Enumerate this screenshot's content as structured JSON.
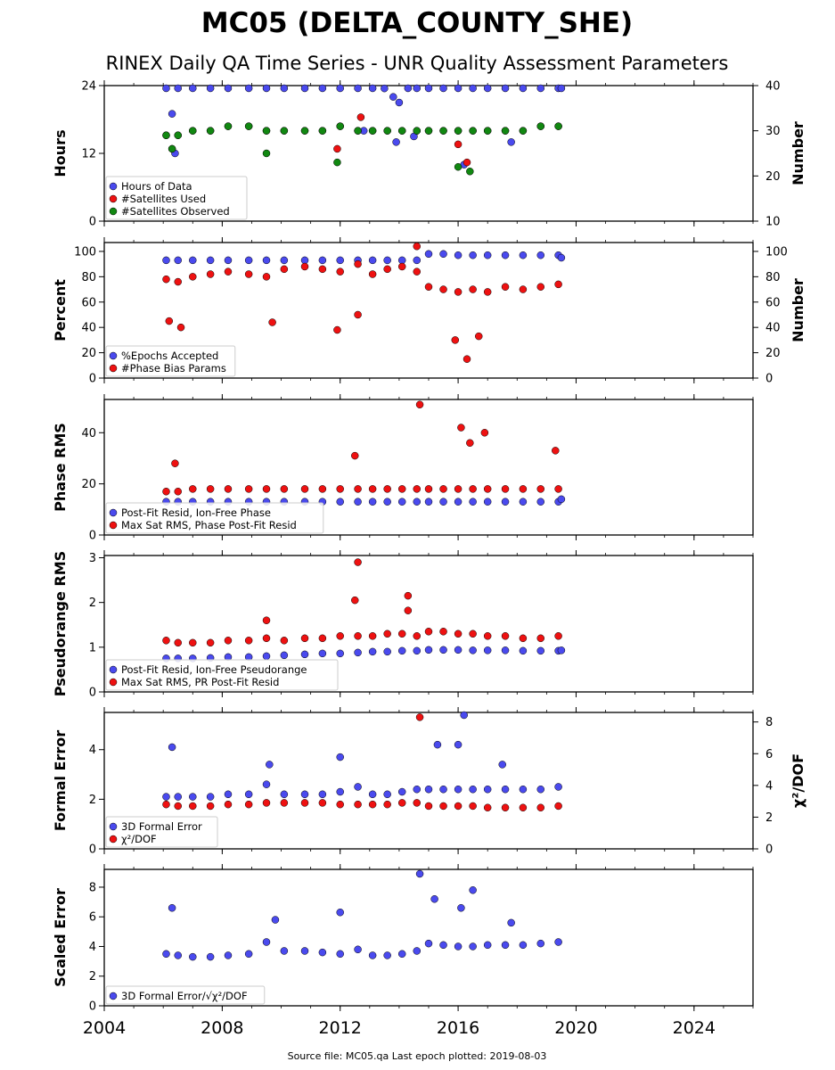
{
  "title": "MC05 (DELTA_COUNTY_SHE)",
  "subtitle": "RINEX Daily QA Time Series - UNR Quality Assessment Parameters",
  "footer": "Source file: MC05.qa Last epoch plotted: 2019-08-03",
  "x_axis": {
    "range": [
      2004,
      2026
    ],
    "ticks": [
      2004,
      2008,
      2012,
      2016,
      2020,
      2024
    ],
    "tick_labels": [
      "2004",
      "2008",
      "2012",
      "2016",
      "2020",
      "2024"
    ]
  },
  "colors": {
    "blue": "#4a4aee",
    "red": "#ee1111",
    "green": "#118811"
  },
  "chart_data": [
    {
      "type": "scatter",
      "ylabel": "Hours",
      "ylim": [
        0,
        24
      ],
      "yticks": [
        0,
        12,
        24
      ],
      "y2label": "Number",
      "y2lim": [
        10,
        40
      ],
      "y2ticks": [
        10,
        20,
        30,
        40
      ],
      "legend_position": "lower-left",
      "series": [
        {
          "name": "Hours of Data",
          "color": "blue",
          "axis": "left",
          "x": [
            2006.1,
            2006.5,
            2007.0,
            2007.6,
            2008.2,
            2008.9,
            2009.5,
            2010.1,
            2010.8,
            2011.4,
            2012.0,
            2012.6,
            2013.1,
            2013.5,
            2013.8,
            2014.0,
            2014.3,
            2014.6,
            2015.0,
            2015.5,
            2016.0,
            2016.5,
            2017.0,
            2017.6,
            2018.2,
            2018.8,
            2019.4,
            2019.5,
            2006.3,
            2012.8,
            2013.9,
            2014.5,
            2016.2,
            2017.8,
            2006.4
          ],
          "y": [
            24,
            24,
            24,
            24,
            24,
            24,
            24,
            24,
            24,
            24,
            24,
            24,
            24,
            23.5,
            22,
            21,
            24,
            24,
            24,
            24,
            24,
            24,
            24,
            24,
            24,
            24,
            24,
            24,
            19,
            16,
            14,
            15,
            10,
            14,
            12
          ]
        },
        {
          "name": "#Satellites Used",
          "color": "red",
          "axis": "right",
          "x": [
            2006.1,
            2006.5,
            2007.0,
            2007.6,
            2008.2,
            2008.9,
            2009.5,
            2010.1,
            2010.8,
            2011.4,
            2012.0,
            2012.6,
            2013.1,
            2013.6,
            2014.1,
            2014.6,
            2015.0,
            2015.5,
            2016.0,
            2016.5,
            2017.0,
            2017.6,
            2018.2,
            2018.8,
            2019.4,
            2006.3,
            2011.9,
            2016.0,
            2016.3,
            2012.7
          ],
          "y": [
            29,
            29,
            30,
            30,
            31,
            31,
            30,
            30,
            30,
            30,
            31,
            30,
            30,
            30,
            30,
            30,
            30,
            30,
            30,
            30,
            30,
            30,
            30,
            31,
            31,
            26,
            26,
            27,
            23,
            33
          ]
        },
        {
          "name": "#Satellites Observed",
          "color": "green",
          "axis": "right",
          "x": [
            2006.1,
            2006.5,
            2007.0,
            2007.6,
            2008.2,
            2008.9,
            2009.5,
            2010.1,
            2010.8,
            2011.4,
            2012.0,
            2012.6,
            2013.1,
            2013.6,
            2014.1,
            2014.6,
            2015.0,
            2015.5,
            2016.0,
            2016.5,
            2017.0,
            2017.6,
            2018.2,
            2018.8,
            2019.4,
            2006.3,
            2009.5,
            2011.9,
            2016.0,
            2016.4
          ],
          "y": [
            29,
            29,
            30,
            30,
            31,
            31,
            30,
            30,
            30,
            30,
            31,
            30,
            30,
            30,
            30,
            30,
            30,
            30,
            30,
            30,
            30,
            30,
            30,
            31,
            31,
            26,
            25,
            23,
            22,
            21
          ]
        }
      ]
    },
    {
      "type": "scatter",
      "ylabel": "Percent",
      "ylim": [
        0,
        107
      ],
      "yticks": [
        0,
        20,
        40,
        60,
        80,
        100
      ],
      "y2label": "Number",
      "y2lim": [
        0,
        107
      ],
      "y2ticks": [
        0,
        20,
        40,
        60,
        80,
        100
      ],
      "legend_position": "lower-left",
      "series": [
        {
          "name": "%Epochs Accepted",
          "color": "blue",
          "axis": "left",
          "x": [
            2006.1,
            2006.5,
            2007.0,
            2007.6,
            2008.2,
            2008.9,
            2009.5,
            2010.1,
            2010.8,
            2011.4,
            2012.0,
            2012.6,
            2013.1,
            2013.6,
            2014.1,
            2014.6,
            2015.0,
            2015.5,
            2016.0,
            2016.5,
            2017.0,
            2017.6,
            2018.2,
            2018.8,
            2019.4,
            2019.5
          ],
          "y": [
            93,
            93,
            93,
            93,
            93,
            93,
            93,
            93,
            93,
            93,
            93,
            93,
            93,
            93,
            93,
            93,
            98,
            98,
            97,
            97,
            97,
            97,
            97,
            97,
            97,
            95
          ]
        },
        {
          "name": "#Phase Bias Params",
          "color": "red",
          "axis": "right",
          "x": [
            2006.1,
            2006.5,
            2007.0,
            2007.6,
            2008.2,
            2008.9,
            2009.5,
            2010.1,
            2010.8,
            2011.4,
            2012.0,
            2012.6,
            2013.1,
            2013.6,
            2014.1,
            2014.6,
            2015.0,
            2015.5,
            2016.0,
            2016.5,
            2017.0,
            2017.6,
            2018.2,
            2018.8,
            2019.4,
            2006.2,
            2006.6,
            2009.7,
            2011.9,
            2012.6,
            2015.9,
            2016.3,
            2016.7,
            2014.6
          ],
          "y": [
            78,
            76,
            80,
            82,
            84,
            82,
            80,
            86,
            88,
            86,
            84,
            90,
            82,
            86,
            88,
            84,
            72,
            70,
            68,
            70,
            68,
            72,
            70,
            72,
            74,
            45,
            40,
            44,
            38,
            50,
            30,
            15,
            33,
            104
          ]
        }
      ]
    },
    {
      "type": "scatter",
      "ylabel": "Phase RMS",
      "ylim": [
        0,
        53
      ],
      "yticks": [
        0,
        20,
        40
      ],
      "legend_position": "lower-left",
      "series": [
        {
          "name": "Post-Fit Resid, Ion-Free Phase",
          "color": "blue",
          "x": [
            2006.1,
            2006.5,
            2007.0,
            2007.6,
            2008.2,
            2008.9,
            2009.5,
            2010.1,
            2010.8,
            2011.4,
            2012.0,
            2012.6,
            2013.1,
            2013.6,
            2014.1,
            2014.6,
            2015.0,
            2015.5,
            2016.0,
            2016.5,
            2017.0,
            2017.6,
            2018.2,
            2018.8,
            2019.4,
            2019.5
          ],
          "y": [
            13,
            13,
            13,
            13,
            13,
            13,
            13,
            13,
            13,
            13,
            13,
            13,
            13,
            13,
            13,
            13,
            13,
            13,
            13,
            13,
            13,
            13,
            13,
            13,
            13,
            14
          ]
        },
        {
          "name": "Max Sat RMS, Phase Post-Fit Resid",
          "color": "red",
          "x": [
            2006.1,
            2006.5,
            2007.0,
            2007.6,
            2008.2,
            2008.9,
            2009.5,
            2010.1,
            2010.8,
            2011.4,
            2012.0,
            2012.6,
            2013.1,
            2013.6,
            2014.1,
            2014.6,
            2015.0,
            2015.5,
            2016.0,
            2016.5,
            2017.0,
            2017.6,
            2018.2,
            2018.8,
            2019.4,
            2014.7,
            2016.1,
            2016.4,
            2016.9,
            2019.3,
            2006.4,
            2012.5
          ],
          "y": [
            17,
            17,
            18,
            18,
            18,
            18,
            18,
            18,
            18,
            18,
            18,
            18,
            18,
            18,
            18,
            18,
            18,
            18,
            18,
            18,
            18,
            18,
            18,
            18,
            18,
            51,
            42,
            36,
            40,
            33,
            28,
            31
          ]
        }
      ]
    },
    {
      "type": "scatter",
      "ylabel": "Pseudorange RMS",
      "ylim": [
        0,
        3.05
      ],
      "yticks": [
        0,
        1,
        2,
        3
      ],
      "legend_position": "lower-left",
      "series": [
        {
          "name": "Post-Fit Resid, Ion-Free Pseudorange",
          "color": "blue",
          "x": [
            2006.1,
            2006.5,
            2007.0,
            2007.6,
            2008.2,
            2008.9,
            2009.5,
            2010.1,
            2010.8,
            2011.4,
            2012.0,
            2012.6,
            2013.1,
            2013.6,
            2014.1,
            2014.6,
            2015.0,
            2015.5,
            2016.0,
            2016.5,
            2017.0,
            2017.6,
            2018.2,
            2018.8,
            2019.4,
            2019.5
          ],
          "y": [
            0.75,
            0.75,
            0.75,
            0.76,
            0.78,
            0.78,
            0.8,
            0.82,
            0.84,
            0.86,
            0.86,
            0.88,
            0.9,
            0.9,
            0.92,
            0.92,
            0.94,
            0.94,
            0.94,
            0.93,
            0.93,
            0.93,
            0.92,
            0.92,
            0.92,
            0.93
          ]
        },
        {
          "name": "Max Sat RMS, PR Post-Fit Resid",
          "color": "red",
          "x": [
            2006.1,
            2006.5,
            2007.0,
            2007.6,
            2008.2,
            2008.9,
            2009.5,
            2010.1,
            2010.8,
            2011.4,
            2012.0,
            2012.6,
            2013.1,
            2013.6,
            2014.1,
            2014.6,
            2015.0,
            2015.5,
            2016.0,
            2016.5,
            2017.0,
            2017.6,
            2018.2,
            2018.8,
            2019.4,
            2012.6,
            2012.5,
            2014.3,
            2014.3,
            2009.5
          ],
          "y": [
            1.15,
            1.1,
            1.1,
            1.1,
            1.15,
            1.15,
            1.2,
            1.15,
            1.2,
            1.2,
            1.25,
            1.25,
            1.25,
            1.3,
            1.3,
            1.25,
            1.35,
            1.35,
            1.3,
            1.3,
            1.25,
            1.25,
            1.2,
            1.2,
            1.25,
            2.9,
            2.05,
            2.15,
            1.82,
            1.6
          ]
        }
      ]
    },
    {
      "type": "scatter",
      "ylabel": "Formal Error",
      "ylim": [
        0,
        5.5
      ],
      "yticks": [
        0,
        2,
        4
      ],
      "y2label": "χ²/DOF",
      "y2lim": [
        0,
        8.6
      ],
      "y2ticks": [
        0,
        2,
        4,
        6,
        8
      ],
      "legend_position": "lower-left",
      "series": [
        {
          "name": "3D Formal Error",
          "color": "blue",
          "axis": "left",
          "x": [
            2006.1,
            2006.5,
            2007.0,
            2007.6,
            2008.2,
            2008.9,
            2009.5,
            2010.1,
            2010.8,
            2011.4,
            2012.0,
            2012.6,
            2013.1,
            2013.6,
            2014.1,
            2014.6,
            2015.0,
            2015.5,
            2016.0,
            2016.5,
            2017.0,
            2017.6,
            2018.2,
            2018.8,
            2019.4,
            2006.3,
            2009.6,
            2012.0,
            2015.3,
            2016.0,
            2016.2,
            2017.5
          ],
          "y": [
            2.1,
            2.1,
            2.1,
            2.1,
            2.2,
            2.2,
            2.6,
            2.2,
            2.2,
            2.2,
            2.3,
            2.5,
            2.2,
            2.2,
            2.3,
            2.4,
            2.4,
            2.4,
            2.4,
            2.4,
            2.4,
            2.4,
            2.4,
            2.4,
            2.5,
            4.1,
            3.4,
            3.7,
            4.2,
            4.2,
            5.4,
            3.4
          ]
        },
        {
          "name": "χ²/DOF",
          "color": "red",
          "axis": "right",
          "x": [
            2006.1,
            2006.5,
            2007.0,
            2007.6,
            2008.2,
            2008.9,
            2009.5,
            2010.1,
            2010.8,
            2011.4,
            2012.0,
            2012.6,
            2013.1,
            2013.6,
            2014.1,
            2014.6,
            2015.0,
            2015.5,
            2016.0,
            2016.5,
            2017.0,
            2017.6,
            2018.2,
            2018.8,
            2019.4,
            2014.7
          ],
          "y": [
            2.8,
            2.7,
            2.7,
            2.7,
            2.8,
            2.8,
            2.9,
            2.9,
            2.9,
            2.9,
            2.8,
            2.8,
            2.8,
            2.8,
            2.9,
            2.9,
            2.7,
            2.7,
            2.7,
            2.7,
            2.6,
            2.6,
            2.6,
            2.6,
            2.7,
            8.3
          ]
        }
      ]
    },
    {
      "type": "scatter",
      "ylabel": "Scaled Error",
      "ylim": [
        0,
        9.2
      ],
      "yticks": [
        0,
        2,
        4,
        6,
        8
      ],
      "legend_position": "lower-left",
      "series": [
        {
          "name": "3D Formal Error/√χ²/DOF",
          "color": "blue",
          "x": [
            2006.1,
            2006.5,
            2007.0,
            2007.6,
            2008.2,
            2008.9,
            2009.5,
            2010.1,
            2010.8,
            2011.4,
            2012.0,
            2012.6,
            2013.1,
            2013.6,
            2014.1,
            2014.6,
            2015.0,
            2015.5,
            2016.0,
            2016.5,
            2017.0,
            2017.6,
            2018.2,
            2018.8,
            2019.4,
            2006.3,
            2009.8,
            2012.0,
            2014.7,
            2015.2,
            2016.1,
            2016.5,
            2017.8
          ],
          "y": [
            3.5,
            3.4,
            3.3,
            3.3,
            3.4,
            3.5,
            4.3,
            3.7,
            3.7,
            3.6,
            3.5,
            3.8,
            3.4,
            3.4,
            3.5,
            3.7,
            4.2,
            4.1,
            4.0,
            4.0,
            4.1,
            4.1,
            4.1,
            4.2,
            4.3,
            6.6,
            5.8,
            6.3,
            8.9,
            7.2,
            6.6,
            7.8,
            5.6
          ]
        }
      ]
    }
  ]
}
